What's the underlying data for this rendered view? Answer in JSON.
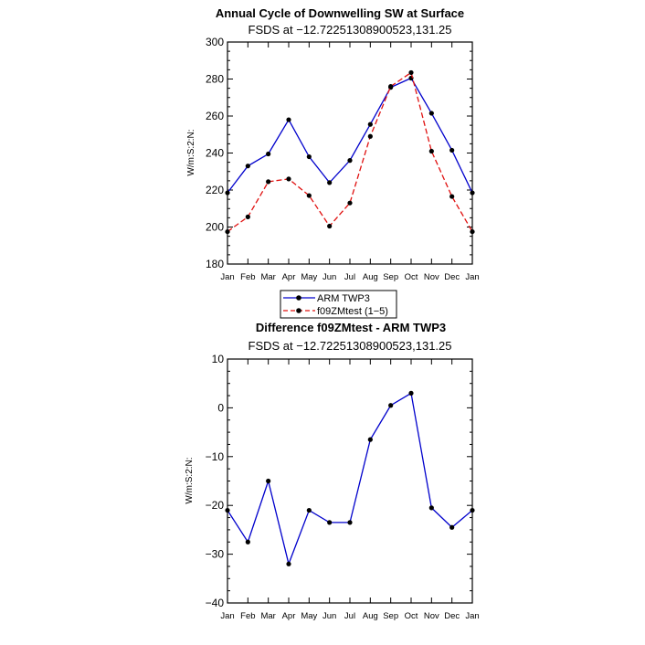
{
  "chart_data": [
    {
      "type": "line",
      "title": "Annual Cycle of Downwelling SW at Surface",
      "subtitle": "FSDS at −12.72251308900523,131.25",
      "ylabel": "W/m:S:2:N:",
      "xlabel": "",
      "categories": [
        "Jan",
        "Feb",
        "Mar",
        "Apr",
        "May",
        "Jun",
        "Jul",
        "Aug",
        "Sep",
        "Oct",
        "Nov",
        "Dec",
        "Jan"
      ],
      "ylim": [
        180,
        300
      ],
      "yticks": [
        180,
        200,
        220,
        240,
        260,
        280,
        300
      ],
      "series": [
        {
          "name": "ARM TWP3",
          "color": "#0000cc",
          "dash": "solid",
          "values": [
            218.5,
            233,
            239.5,
            258,
            238,
            224,
            236,
            255.5,
            275.5,
            280.5,
            261.5,
            241.5,
            218.5
          ]
        },
        {
          "name": "f09ZMtest (1−5)",
          "color": "#e0100f",
          "dash": "dashed",
          "values": [
            197.5,
            205.5,
            224.5,
            226,
            217,
            200.5,
            213,
            249,
            276,
            283.5,
            241,
            216.5,
            197.5
          ]
        }
      ],
      "legend": "below"
    },
    {
      "type": "line",
      "title": "Difference f09ZMtest - ARM TWP3",
      "subtitle": "FSDS at −12.72251308900523,131.25",
      "ylabel": "W/m:S:2:N:",
      "xlabel": "",
      "categories": [
        "Jan",
        "Feb",
        "Mar",
        "Apr",
        "May",
        "Jun",
        "Jul",
        "Aug",
        "Sep",
        "Oct",
        "Nov",
        "Dec",
        "Jan"
      ],
      "ylim": [
        -40,
        10
      ],
      "yticks": [
        -40,
        -30,
        -20,
        -10,
        0,
        10
      ],
      "ytick_labels": [
        "−40",
        "−30",
        "−20",
        "−10",
        "0",
        "10"
      ],
      "series": [
        {
          "color": "#0000cc",
          "dash": "solid",
          "values": [
            -21,
            -27.5,
            -15,
            -32,
            -21,
            -23.5,
            -23.5,
            -6.5,
            0.5,
            3,
            -20.5,
            -24.5,
            -21
          ]
        }
      ]
    }
  ]
}
